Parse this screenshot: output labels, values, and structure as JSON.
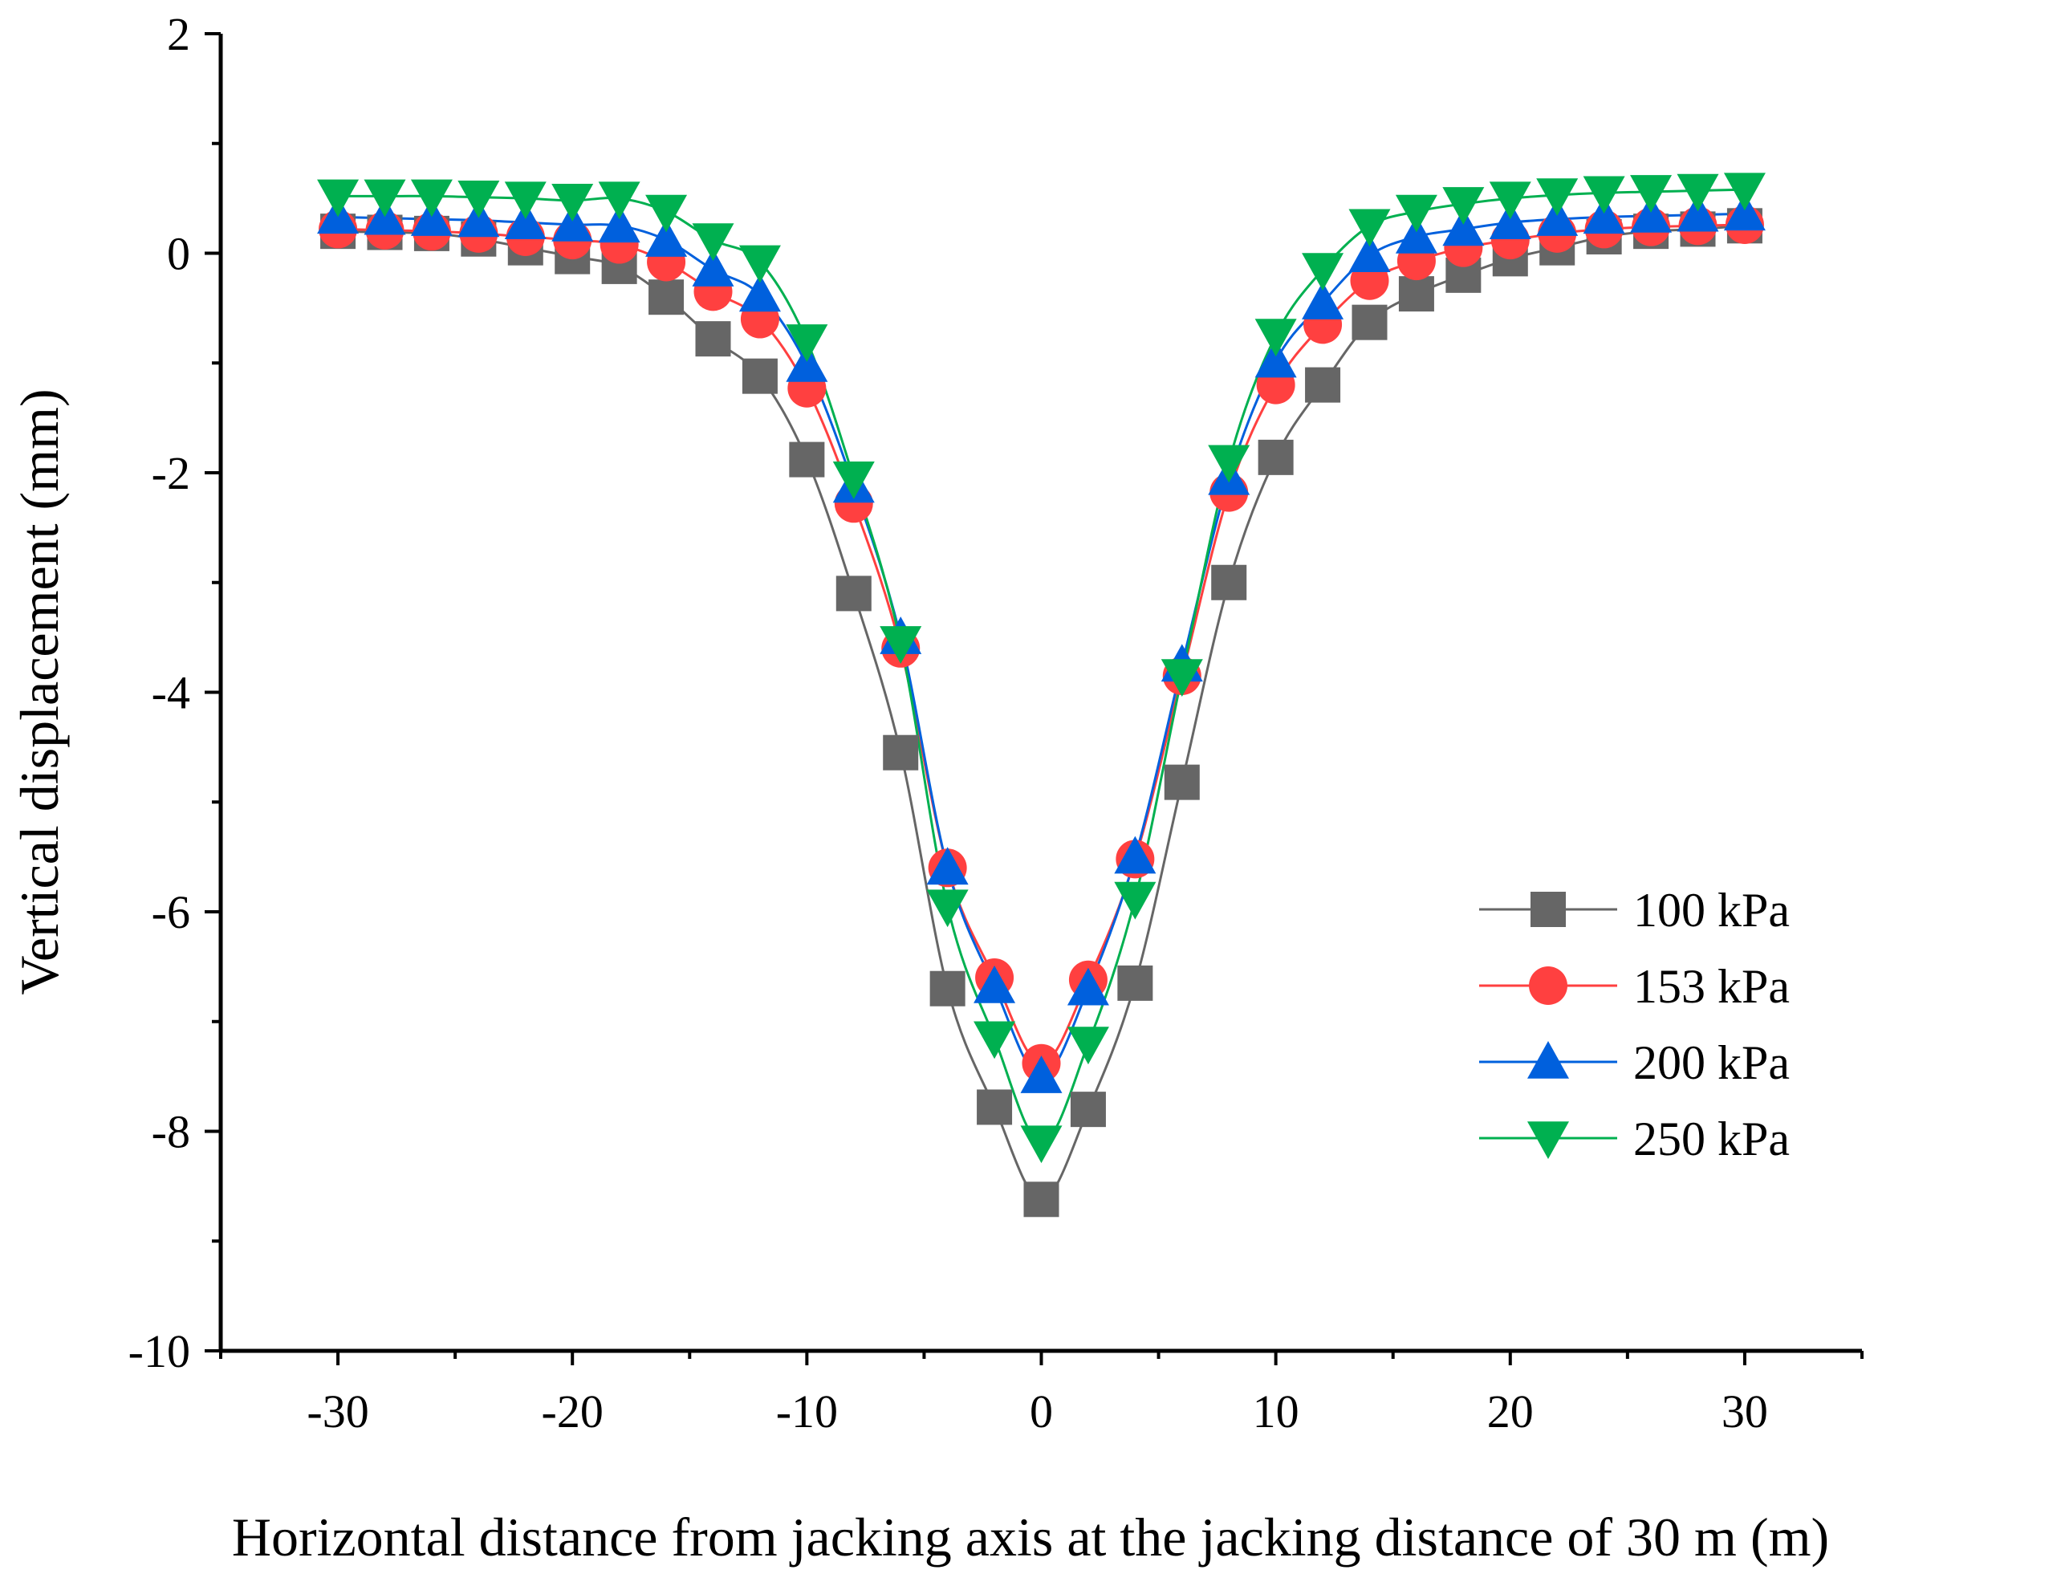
{
  "chart_data": {
    "type": "line",
    "title": "",
    "xlabel": "Horizontal distance from jacking axis at the jacking distance of 30 m (m)",
    "ylabel": "Vertical displacement (mm)",
    "xlim": [
      -35,
      35
    ],
    "ylim": [
      -10,
      2
    ],
    "x_ticks": [
      -30,
      -20,
      -10,
      0,
      10,
      20,
      30
    ],
    "y_ticks": [
      -10,
      -8,
      -6,
      -4,
      -2,
      0,
      2
    ],
    "x_tick_labels": [
      "-30",
      "-20",
      "-10",
      "0",
      "10",
      "20",
      "30"
    ],
    "y_tick_labels": [
      "-10",
      "-8",
      "-6",
      "-4",
      "-2",
      "0",
      "2"
    ],
    "x": [
      -30,
      -28,
      -26,
      -24,
      -22,
      -20,
      -18,
      -16,
      -14,
      -12,
      -10,
      -8,
      -6,
      -4,
      -2,
      0,
      2,
      4,
      6,
      8,
      10,
      12,
      14,
      16,
      18,
      20,
      22,
      24,
      26,
      28,
      30
    ],
    "legend_position": "lower-right",
    "series": [
      {
        "name": "100 kPa",
        "color": "#666666",
        "marker": "square",
        "values": [
          0.2,
          0.19,
          0.18,
          0.13,
          0.05,
          -0.03,
          -0.12,
          -0.4,
          -0.78,
          -1.12,
          -1.88,
          -3.1,
          -4.55,
          -6.7,
          -7.78,
          -8.62,
          -7.8,
          -6.65,
          -4.82,
          -3.0,
          -1.86,
          -1.2,
          -0.63,
          -0.37,
          -0.2,
          -0.05,
          0.05,
          0.15,
          0.2,
          0.22,
          0.25
        ]
      },
      {
        "name": "153 kPa",
        "color": "#ff4040",
        "marker": "circle",
        "values": [
          0.22,
          0.21,
          0.2,
          0.18,
          0.15,
          0.12,
          0.08,
          -0.08,
          -0.35,
          -0.6,
          -1.23,
          -2.28,
          -3.6,
          -5.6,
          -6.6,
          -7.38,
          -6.62,
          -5.52,
          -3.85,
          -2.18,
          -1.2,
          -0.65,
          -0.25,
          -0.07,
          0.05,
          0.12,
          0.18,
          0.22,
          0.24,
          0.25,
          0.26
        ]
      },
      {
        "name": "200 kPa",
        "color": "#0060dd",
        "marker": "triangle-up",
        "values": [
          0.33,
          0.32,
          0.31,
          0.3,
          0.28,
          0.26,
          0.25,
          0.12,
          -0.15,
          -0.38,
          -1.02,
          -2.12,
          -3.5,
          -5.6,
          -6.68,
          -7.5,
          -6.7,
          -5.5,
          -3.75,
          -2.05,
          -0.98,
          -0.45,
          -0.02,
          0.15,
          0.22,
          0.28,
          0.31,
          0.33,
          0.34,
          0.35,
          0.36
        ]
      },
      {
        "name": "250 kPa",
        "color": "#00b050",
        "marker": "triangle-down",
        "values": [
          0.52,
          0.52,
          0.52,
          0.51,
          0.5,
          0.48,
          0.5,
          0.38,
          0.12,
          -0.08,
          -0.8,
          -2.05,
          -3.55,
          -5.95,
          -7.15,
          -8.1,
          -7.2,
          -5.88,
          -3.85,
          -1.9,
          -0.75,
          -0.15,
          0.25,
          0.38,
          0.45,
          0.5,
          0.53,
          0.55,
          0.56,
          0.57,
          0.58
        ]
      }
    ]
  }
}
